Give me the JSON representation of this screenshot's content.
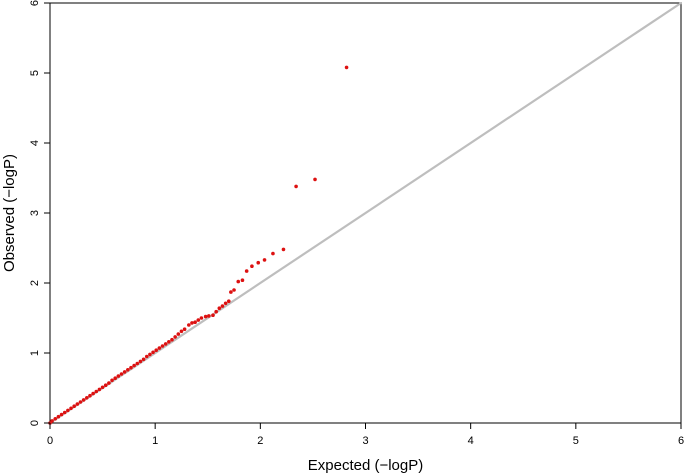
{
  "chart_data": {
    "type": "scatter",
    "title": "",
    "xlabel": "Expected (−logP)",
    "ylabel": "Observed (−logP)",
    "xlim": [
      0,
      6
    ],
    "ylim": [
      0,
      6
    ],
    "xticks": [
      "0",
      "1",
      "2",
      "3",
      "4",
      "5",
      "6"
    ],
    "yticks": [
      "0",
      "1",
      "2",
      "3",
      "4",
      "5",
      "6"
    ],
    "grid": false,
    "legend": "none",
    "reference_line": {
      "from": [
        0,
        0
      ],
      "to": [
        6,
        6
      ],
      "color": "#bebebe"
    },
    "point_color": "#dd1111",
    "series": [
      {
        "points": [
          [
            0.0,
            0.0
          ],
          [
            0.02,
            0.03
          ],
          [
            0.05,
            0.06
          ],
          [
            0.08,
            0.09
          ],
          [
            0.11,
            0.12
          ],
          [
            0.14,
            0.15
          ],
          [
            0.17,
            0.18
          ],
          [
            0.2,
            0.21
          ],
          [
            0.23,
            0.24
          ],
          [
            0.26,
            0.27
          ],
          [
            0.29,
            0.3
          ],
          [
            0.32,
            0.33
          ],
          [
            0.35,
            0.36
          ],
          [
            0.38,
            0.39
          ],
          [
            0.41,
            0.42
          ],
          [
            0.44,
            0.45
          ],
          [
            0.47,
            0.48
          ],
          [
            0.5,
            0.51
          ],
          [
            0.53,
            0.54
          ],
          [
            0.56,
            0.57
          ],
          [
            0.59,
            0.61
          ],
          [
            0.62,
            0.64
          ],
          [
            0.65,
            0.67
          ],
          [
            0.68,
            0.7
          ],
          [
            0.71,
            0.73
          ],
          [
            0.74,
            0.76
          ],
          [
            0.77,
            0.79
          ],
          [
            0.8,
            0.82
          ],
          [
            0.83,
            0.85
          ],
          [
            0.86,
            0.88
          ],
          [
            0.89,
            0.91
          ],
          [
            0.92,
            0.95
          ],
          [
            0.95,
            0.98
          ],
          [
            0.98,
            1.01
          ],
          [
            1.01,
            1.04
          ],
          [
            1.04,
            1.07
          ],
          [
            1.07,
            1.1
          ],
          [
            1.1,
            1.13
          ],
          [
            1.13,
            1.16
          ],
          [
            1.16,
            1.19
          ],
          [
            1.19,
            1.23
          ],
          [
            1.22,
            1.27
          ],
          [
            1.25,
            1.31
          ],
          [
            1.28,
            1.34
          ],
          [
            1.32,
            1.4
          ],
          [
            1.35,
            1.43
          ],
          [
            1.38,
            1.44
          ],
          [
            1.41,
            1.47
          ],
          [
            1.44,
            1.5
          ],
          [
            1.48,
            1.52
          ],
          [
            1.51,
            1.53
          ],
          [
            1.55,
            1.54
          ],
          [
            1.58,
            1.59
          ],
          [
            1.61,
            1.64
          ],
          [
            1.64,
            1.67
          ],
          [
            1.67,
            1.71
          ],
          [
            1.7,
            1.74
          ],
          [
            1.72,
            1.87
          ],
          [
            1.75,
            1.9
          ],
          [
            1.79,
            2.02
          ],
          [
            1.83,
            2.04
          ],
          [
            1.87,
            2.17
          ],
          [
            1.92,
            2.24
          ],
          [
            1.98,
            2.29
          ],
          [
            2.04,
            2.33
          ],
          [
            2.12,
            2.42
          ],
          [
            2.22,
            2.48
          ],
          [
            2.34,
            3.38
          ],
          [
            2.52,
            3.48
          ],
          [
            2.82,
            5.08
          ]
        ]
      }
    ]
  }
}
